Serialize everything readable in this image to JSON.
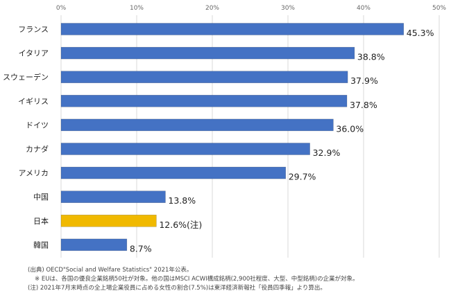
{
  "chart_data": {
    "type": "bar",
    "orientation": "horizontal",
    "categories": [
      "フランス",
      "イタリア",
      "スウェーデン",
      "イギリス",
      "ドイツ",
      "カナダ",
      "アメリカ",
      "中国",
      "日本",
      "韓国"
    ],
    "values": [
      45.3,
      38.8,
      37.9,
      37.8,
      36.0,
      32.9,
      29.7,
      13.8,
      12.6,
      8.7
    ],
    "value_labels": [
      "45.3%",
      "38.8%",
      "37.9%",
      "37.8%",
      "36.0%",
      "32.9%",
      "29.7%",
      "13.8%",
      "12.6%(注)",
      "8.7%"
    ],
    "highlight_index": 8,
    "xlim": [
      0,
      50
    ],
    "ticks": [
      "0%",
      "10%",
      "20%",
      "30%",
      "40%",
      "50%"
    ],
    "grid": true,
    "title": "",
    "xlabel": "",
    "ylabel": "",
    "colors": {
      "bar": "#4472c4",
      "highlight": "#f0b900",
      "grid": "#d9d9d9"
    }
  },
  "notes": [
    "(出典) OECD\"Social and Welfare Statistics\" 2021年公表。",
    "※ EUは、各国の優良企業銘柄50社が対象。他の国はMSCI ACWI構成銘柄(2,900社程度、大型、中型銘柄)の企業が対象。",
    "(注) 2021年7月末時点の全上場企業役員に占める女性の割合(7.5%)は東洋経済新報社「役員四季報」より算出。"
  ]
}
